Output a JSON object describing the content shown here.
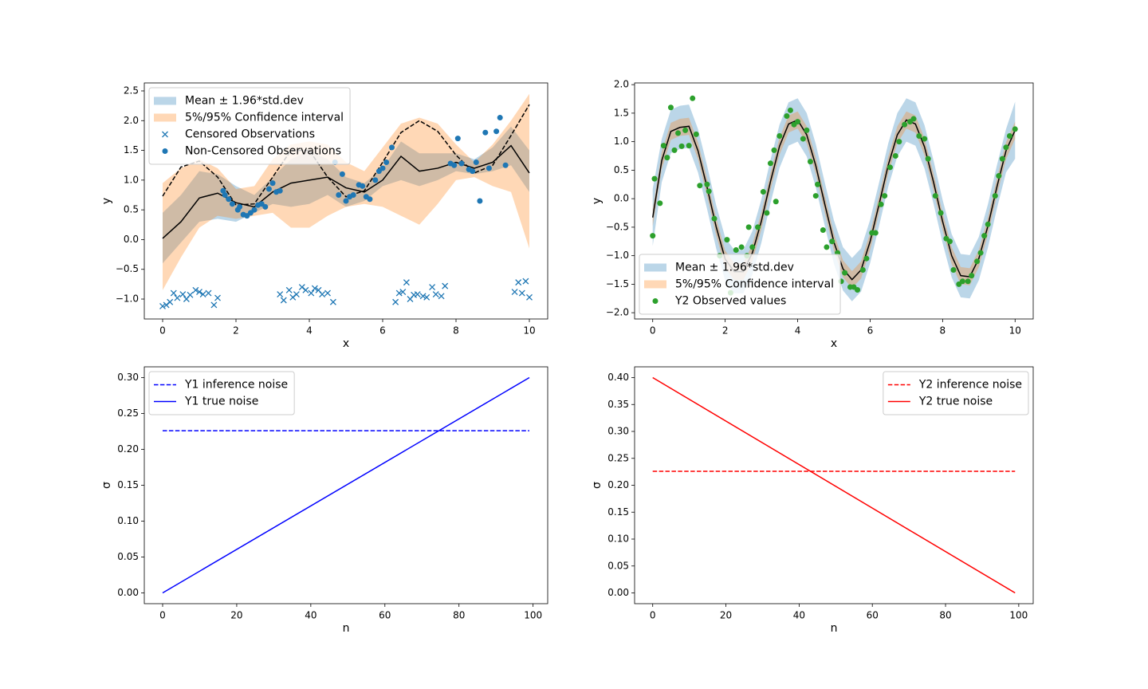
{
  "chart_data": [
    {
      "type": "line",
      "xlabel": "x",
      "ylabel": "y",
      "xlim": [
        -0.5,
        10.5
      ],
      "ylim": [
        -1.335,
        2.634
      ],
      "xticks": [
        0,
        2,
        4,
        6,
        8,
        10
      ],
      "yticks": [
        {
          "value": -1,
          "label": "−1.0"
        },
        {
          "value": -0.5,
          "label": "−0.5"
        },
        {
          "value": 0,
          "label": "0.0"
        },
        0.5,
        {
          "value": 1,
          "label": "1.0"
        },
        1.5,
        {
          "value": 2,
          "label": "2.0"
        },
        2.5
      ],
      "legend": "upper left",
      "x": [
        0,
        0.5,
        1,
        1.5,
        2,
        2.5,
        3,
        3.5,
        4,
        4.5,
        5,
        5.5,
        6,
        6.5,
        7,
        7.5,
        8,
        8.5,
        9,
        9.5,
        10
      ],
      "bands": [
        {
          "name": "Mean ± 1.96*std.dev",
          "color": "#1f77b4",
          "opacity": 0.3,
          "lower": [
            -0.4,
            -0.05,
            0.3,
            0.35,
            0.3,
            0.45,
            0.6,
            0.55,
            0.6,
            0.75,
            0.55,
            0.65,
            0.9,
            1.0,
            0.9,
            1.0,
            1.15,
            1.1,
            1.15,
            1.25,
            0.8
          ],
          "upper": [
            0.45,
            0.75,
            1.15,
            1.1,
            0.9,
            0.75,
            1.05,
            1.35,
            1.5,
            1.35,
            1.05,
            0.95,
            1.2,
            1.65,
            1.45,
            1.45,
            1.45,
            1.35,
            1.55,
            1.9,
            1.5
          ]
        },
        {
          "name": "5%/95% Confidence interval",
          "color": "#ff7f0e",
          "opacity": 0.3,
          "lower": [
            -0.85,
            -0.3,
            0.2,
            0.4,
            0.35,
            0.4,
            0.45,
            0.2,
            0.2,
            0.4,
            0.55,
            0.6,
            0.55,
            0.4,
            0.25,
            0.6,
            1.0,
            1.05,
            0.9,
            0.8,
            -0.15
          ],
          "upper": [
            0.95,
            1.2,
            1.35,
            1.2,
            0.85,
            0.9,
            1.35,
            1.6,
            1.65,
            1.6,
            1.3,
            1.15,
            1.55,
            1.95,
            2.05,
            1.95,
            1.6,
            1.3,
            1.6,
            2.0,
            2.45
          ]
        }
      ],
      "series": [
        {
          "color": "#000000",
          "style": "solid",
          "values": [
            0.02,
            0.3,
            0.7,
            0.78,
            0.62,
            0.55,
            0.8,
            0.95,
            1.0,
            1.05,
            0.87,
            0.8,
            1.0,
            1.4,
            1.15,
            1.2,
            1.3,
            1.2,
            1.3,
            1.58,
            1.12
          ]
        },
        {
          "color": "#000000",
          "style": "dashed",
          "values": [
            0.73,
            1.22,
            1.32,
            1.05,
            0.58,
            0.6,
            1.05,
            1.5,
            1.5,
            1.05,
            0.72,
            0.82,
            1.3,
            1.8,
            2.0,
            1.82,
            1.42,
            1.12,
            1.25,
            1.75,
            2.27
          ]
        }
      ],
      "scatter": [
        {
          "name": "Censored Observations",
          "marker": "x",
          "color": "#1f77b4",
          "x": [
            0,
            0.1,
            0.2,
            0.3,
            0.4,
            0.55,
            0.65,
            0.75,
            0.9,
            1.0,
            1.1,
            1.25,
            1.4,
            1.5,
            3.2,
            3.3,
            3.45,
            3.55,
            3.65,
            3.8,
            3.9,
            4.05,
            4.15,
            4.25,
            4.35,
            4.5,
            4.65,
            6.35,
            6.45,
            6.55,
            6.65,
            6.75,
            6.85,
            6.95,
            7.1,
            7.2,
            7.35,
            7.45,
            7.6,
            7.7,
            9.6,
            9.7,
            9.8,
            9.9,
            10
          ],
          "values": [
            -1.12,
            -1.1,
            -1.05,
            -0.9,
            -0.98,
            -0.92,
            -1.0,
            -0.93,
            -0.85,
            -0.88,
            -0.92,
            -0.9,
            -1.1,
            -0.98,
            -0.92,
            -1.02,
            -0.85,
            -0.97,
            -0.92,
            -0.8,
            -0.85,
            -0.9,
            -0.82,
            -0.85,
            -0.92,
            -0.9,
            -1.05,
            -1.05,
            -0.9,
            -0.88,
            -0.72,
            -1.0,
            -0.93,
            -0.92,
            -0.95,
            -0.97,
            -0.8,
            -0.92,
            -0.95,
            -0.78,
            -0.88,
            -0.72,
            -0.9,
            -0.7,
            -0.97
          ]
        },
        {
          "name": "Non-Censored Observations",
          "marker": "o",
          "color": "#1f77b4",
          "x": [
            1.65,
            1.7,
            1.8,
            1.9,
            2.05,
            2.1,
            2.2,
            2.3,
            2.4,
            2.5,
            2.6,
            2.7,
            2.8,
            2.9,
            3.0,
            3.1,
            3.2,
            4.7,
            4.8,
            4.9,
            5.0,
            5.1,
            5.2,
            5.35,
            5.45,
            5.55,
            5.65,
            5.8,
            5.9,
            6.0,
            6.1,
            6.25,
            7.85,
            7.95,
            8.05,
            8.15,
            8.35,
            8.45,
            8.55,
            8.65,
            8.8,
            8.9,
            9.1,
            9.2,
            9.35
          ],
          "values": [
            0.82,
            0.75,
            0.68,
            0.6,
            0.5,
            0.55,
            0.42,
            0.4,
            0.45,
            0.5,
            0.58,
            0.6,
            0.55,
            0.85,
            0.95,
            0.8,
            0.82,
            1.3,
            0.75,
            1.1,
            0.65,
            0.72,
            0.75,
            0.92,
            0.9,
            0.72,
            0.68,
            1.0,
            1.15,
            1.2,
            1.3,
            1.55,
            1.28,
            1.25,
            1.7,
            1.28,
            1.18,
            1.15,
            1.3,
            0.65,
            1.8,
            1.2,
            1.82,
            2.05,
            1.25
          ]
        }
      ]
    },
    {
      "type": "line",
      "xlabel": "x",
      "ylabel": "y",
      "xlim": [
        -0.5,
        10.5
      ],
      "ylim": [
        -2.11,
        2.03
      ],
      "xticks": [
        0,
        2,
        4,
        6,
        8,
        10
      ],
      "yticks": [
        {
          "value": -2,
          "label": "−2.0"
        },
        {
          "value": -1.5,
          "label": "−1.5"
        },
        {
          "value": -1,
          "label": "−1.0"
        },
        {
          "value": -0.5,
          "label": "−0.5"
        },
        {
          "value": 0,
          "label": "0.0"
        },
        0.5,
        {
          "value": 1,
          "label": "1.0"
        },
        1.5,
        {
          "value": 2,
          "label": "2.0"
        }
      ],
      "legend": "lower left",
      "x": [
        0,
        0.25,
        0.5,
        0.75,
        1,
        1.25,
        1.5,
        1.75,
        2,
        2.25,
        2.5,
        2.75,
        3,
        3.25,
        3.5,
        3.75,
        4,
        4.25,
        4.5,
        4.75,
        5,
        5.25,
        5.5,
        5.75,
        6,
        6.25,
        6.5,
        6.75,
        7,
        7.25,
        7.5,
        7.75,
        8,
        8.25,
        8.5,
        8.75,
        9,
        9.25,
        9.5,
        9.75,
        10
      ],
      "bands": [
        {
          "name": "Mean ± 1.96*std.dev",
          "color": "#1f77b4",
          "opacity": 0.3,
          "lower": [
            -0.83,
            0.29,
            0.8,
            0.87,
            0.89,
            0.46,
            -0.18,
            -0.87,
            -1.44,
            -1.66,
            -1.66,
            -1.33,
            -0.77,
            -0.08,
            0.54,
            0.93,
            1.0,
            0.74,
            0.2,
            -0.48,
            -1.14,
            -1.61,
            -1.8,
            -1.63,
            -1.13,
            -0.47,
            0.21,
            0.74,
            1.0,
            0.93,
            0.53,
            -0.09,
            -0.78,
            -1.38,
            -1.73,
            -1.75,
            -1.43,
            -0.86,
            -0.17,
            0.46,
            0.7
          ],
          "upper": [
            0.17,
            1.05,
            1.56,
            1.63,
            1.65,
            1.22,
            0.58,
            -0.11,
            -0.68,
            -0.9,
            -0.9,
            -0.57,
            -0.01,
            0.68,
            1.3,
            1.69,
            1.76,
            1.5,
            0.96,
            0.28,
            -0.38,
            -0.85,
            -1.04,
            -0.87,
            -0.37,
            0.29,
            0.97,
            1.5,
            1.76,
            1.69,
            1.29,
            0.67,
            -0.02,
            -0.62,
            -0.97,
            -0.99,
            -0.67,
            -0.1,
            0.59,
            1.22,
            1.7
          ]
        },
        {
          "name": "5%/95% Confidence interval",
          "color": "#ff7f0e",
          "opacity": 0.3,
          "lower": [
            -0.48,
            0.52,
            1.03,
            1.1,
            1.12,
            0.69,
            0.05,
            -0.64,
            -1.21,
            -1.43,
            -1.43,
            -1.1,
            -0.54,
            0.15,
            0.77,
            1.16,
            1.23,
            0.97,
            0.43,
            -0.25,
            -0.91,
            -1.38,
            -1.57,
            -1.4,
            -0.9,
            -0.24,
            0.44,
            0.97,
            1.23,
            1.16,
            0.76,
            0.14,
            -0.55,
            -1.15,
            -1.5,
            -1.52,
            -1.2,
            -0.63,
            0.06,
            0.69,
            1.05
          ],
          "upper": [
            -0.18,
            0.82,
            1.33,
            1.4,
            1.42,
            0.99,
            0.35,
            -0.34,
            -0.91,
            -1.13,
            -1.13,
            -0.8,
            -0.24,
            0.45,
            1.07,
            1.46,
            1.53,
            1.27,
            0.73,
            0.05,
            -0.61,
            -1.08,
            -1.27,
            -1.1,
            -0.6,
            0.06,
            0.74,
            1.27,
            1.53,
            1.46,
            1.06,
            0.44,
            -0.25,
            -0.85,
            -1.2,
            -1.22,
            -0.9,
            -0.33,
            0.36,
            0.99,
            1.35
          ]
        }
      ],
      "series": [
        {
          "color": "#000000",
          "style": "solid",
          "values": [
            -0.33,
            0.67,
            1.18,
            1.25,
            1.27,
            0.84,
            0.2,
            -0.49,
            -1.06,
            -1.28,
            -1.28,
            -0.95,
            -0.39,
            0.3,
            0.92,
            1.31,
            1.38,
            1.12,
            0.58,
            -0.1,
            -0.76,
            -1.23,
            -1.42,
            -1.25,
            -0.75,
            -0.09,
            0.59,
            1.12,
            1.38,
            1.31,
            0.91,
            0.29,
            -0.4,
            -1.0,
            -1.35,
            -1.37,
            -1.05,
            -0.48,
            0.21,
            0.84,
            1.2
          ]
        }
      ],
      "scatter": [
        {
          "name": "Y2 Observed values",
          "marker": "o",
          "color": "#2ca02c",
          "x": [
            0,
            0.05,
            0.2,
            0.3,
            0.4,
            0.5,
            0.6,
            0.7,
            0.8,
            0.9,
            1.0,
            1.1,
            1.2,
            1.3,
            1.5,
            1.55,
            1.7,
            1.85,
            2.05,
            2.15,
            2.3,
            2.45,
            2.6,
            2.65,
            2.75,
            2.9,
            3.05,
            3.15,
            3.25,
            3.35,
            3.4,
            3.5,
            3.7,
            3.8,
            3.9,
            4.0,
            4.15,
            4.25,
            4.35,
            4.5,
            4.55,
            4.7,
            4.8,
            4.95,
            5.1,
            5.2,
            5.3,
            5.45,
            5.55,
            5.65,
            5.8,
            5.9,
            6.05,
            6.15,
            6.3,
            6.4,
            6.55,
            6.7,
            6.8,
            6.95,
            7.1,
            7.2,
            7.35,
            7.5,
            7.6,
            7.8,
            7.95,
            8.1,
            8.2,
            8.3,
            8.45,
            8.55,
            8.7,
            8.8,
            8.95,
            9.05,
            9.15,
            9.25,
            9.45,
            9.55,
            9.65,
            9.75,
            9.85,
            10
          ],
          "values": [
            -0.65,
            0.35,
            -0.08,
            0.93,
            0.72,
            1.6,
            0.85,
            1.15,
            0.92,
            1.2,
            0.93,
            1.76,
            1.13,
            0.23,
            0.25,
            0.13,
            -0.35,
            -1.0,
            -0.72,
            -1.65,
            -0.9,
            -0.85,
            -1.0,
            -0.5,
            -0.85,
            -0.5,
            0.12,
            -0.25,
            0.62,
            0.85,
            -0.05,
            1.1,
            1.45,
            1.55,
            1.3,
            1.35,
            1.05,
            1.2,
            0.65,
            0.05,
            0.25,
            -0.55,
            -0.85,
            -0.75,
            -0.95,
            -1.45,
            -1.3,
            -1.55,
            -1.55,
            -1.6,
            -1.25,
            -1.05,
            -0.6,
            -0.6,
            -0.1,
            0.05,
            0.55,
            0.75,
            1.0,
            1.3,
            1.35,
            1.4,
            1.1,
            1.05,
            0.7,
            0.05,
            -0.25,
            -0.7,
            -0.75,
            -1.25,
            -1.5,
            -1.45,
            -1.45,
            -1.35,
            -1.1,
            -0.95,
            -0.65,
            -0.45,
            0.05,
            0.4,
            0.7,
            0.9,
            1.1,
            1.22
          ]
        }
      ]
    },
    {
      "type": "line",
      "xlabel": "n",
      "ylabel": "σ",
      "xlim": [
        -4.95,
        103.95
      ],
      "ylim": [
        -0.015,
        0.315
      ],
      "xticks": [
        0,
        20,
        40,
        60,
        80,
        100
      ],
      "yticks": [
        {
          "value": 0,
          "label": "0.00"
        },
        0.05,
        {
          "value": 0.1,
          "label": "0.10"
        },
        0.15,
        {
          "value": 0.2,
          "label": "0.20"
        },
        0.25,
        {
          "value": 0.3,
          "label": "0.30"
        }
      ],
      "legend": "upper left",
      "series": [
        {
          "name": "Y1 inference noise",
          "color": "#0000ff",
          "style": "dashed",
          "x": [
            0,
            99
          ],
          "values": [
            0.226,
            0.226
          ]
        },
        {
          "name": "Y1 true noise",
          "color": "#0000ff",
          "style": "solid",
          "x": [
            0,
            99
          ],
          "values": [
            0,
            0.3
          ]
        }
      ]
    },
    {
      "type": "line",
      "xlabel": "n",
      "ylabel": "σ",
      "xlim": [
        -4.95,
        103.95
      ],
      "ylim": [
        -0.02,
        0.42
      ],
      "xticks": [
        0,
        20,
        40,
        60,
        80,
        100
      ],
      "yticks": [
        {
          "value": 0,
          "label": "0.00"
        },
        0.05,
        {
          "value": 0.1,
          "label": "0.10"
        },
        0.15,
        {
          "value": 0.2,
          "label": "0.20"
        },
        0.25,
        {
          "value": 0.3,
          "label": "0.30"
        },
        0.35,
        {
          "value": 0.4,
          "label": "0.40"
        }
      ],
      "legend": "upper right",
      "series": [
        {
          "name": "Y2 inference noise",
          "color": "#ff0000",
          "style": "dashed",
          "x": [
            0,
            99
          ],
          "values": [
            0.226,
            0.226
          ]
        },
        {
          "name": "Y2 true noise",
          "color": "#ff0000",
          "style": "solid",
          "x": [
            0,
            99
          ],
          "values": [
            0.4,
            0
          ]
        }
      ]
    }
  ]
}
